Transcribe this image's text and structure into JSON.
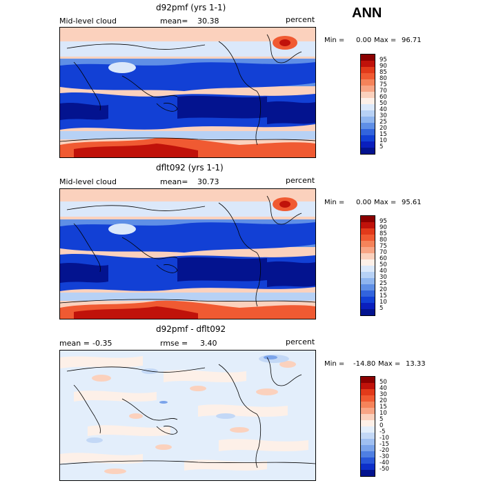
{
  "season": "ANN",
  "units_label": "percent",
  "panels": [
    {
      "title": "d92pmf (yrs 1-1)",
      "variable": "Mid-level cloud",
      "stat1_label": "mean=",
      "stat1_value": "30.38",
      "stat2_label": "",
      "stat2_value": "",
      "units": "percent",
      "min_label": "Min =",
      "min_value": "0.00",
      "max_label": "Max =",
      "max_value": "96.71",
      "levels": [
        "95",
        "90",
        "85",
        "80",
        "75",
        "70",
        "60",
        "50",
        "40",
        "30",
        "25",
        "20",
        "15",
        "10",
        "5"
      ],
      "colors": [
        "#8b0000",
        "#c0120a",
        "#e23a1a",
        "#f05a32",
        "#f5835a",
        "#f8a585",
        "#fbd1bd",
        "#fdf0e8",
        "#dbe8fa",
        "#b7d1f5",
        "#8fb5ef",
        "#5f8fe6",
        "#3264dd",
        "#1240d5",
        "#0a1fbd",
        "#03138f"
      ]
    },
    {
      "title": "dflt092 (yrs 1-1)",
      "variable": "Mid-level cloud",
      "stat1_label": "mean=",
      "stat1_value": "30.73",
      "stat2_label": "",
      "stat2_value": "",
      "units": "percent",
      "min_label": "Min =",
      "min_value": "0.00",
      "max_label": "Max =",
      "max_value": "95.61",
      "levels": [
        "95",
        "90",
        "85",
        "80",
        "75",
        "70",
        "60",
        "50",
        "40",
        "30",
        "25",
        "20",
        "15",
        "10",
        "5"
      ],
      "colors": [
        "#8b0000",
        "#c0120a",
        "#e23a1a",
        "#f05a32",
        "#f5835a",
        "#f8a585",
        "#fbd1bd",
        "#fdf0e8",
        "#dbe8fa",
        "#b7d1f5",
        "#8fb5ef",
        "#5f8fe6",
        "#3264dd",
        "#1240d5",
        "#0a1fbd",
        "#03138f"
      ]
    },
    {
      "title": "d92pmf - dflt092",
      "variable": "",
      "stat1_label": "mean =",
      "stat1_value": "-0.35",
      "stat2_label": "rmse =",
      "stat2_value": "3.40",
      "units": "percent",
      "min_label": "Min =",
      "min_value": "-14.80",
      "max_label": "Max =",
      "max_value": "13.33",
      "levels": [
        "50",
        "40",
        "30",
        "20",
        "15",
        "10",
        "5",
        "0",
        "-5",
        "-10",
        "-15",
        "-20",
        "-30",
        "-40",
        "-50"
      ],
      "colors": [
        "#8b0000",
        "#c0120a",
        "#e23a1a",
        "#f05a32",
        "#f5835a",
        "#f8a585",
        "#fbd1bd",
        "#fdf0e8",
        "#e3eefb",
        "#c3d8f6",
        "#9fbff1",
        "#7aa3ea",
        "#4f7fe2",
        "#2856d8",
        "#0d2fc9",
        "#03138f"
      ]
    }
  ]
}
